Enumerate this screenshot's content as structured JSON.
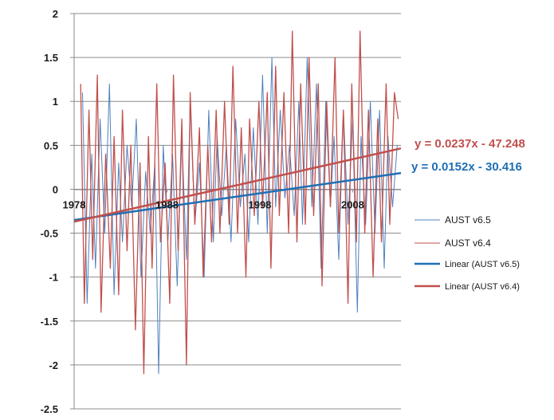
{
  "chart_data": {
    "type": "line",
    "title": "",
    "xlabel": "",
    "ylabel": "",
    "xlim": [
      1978.0,
      2013.2
    ],
    "ylim": [
      -2.5,
      2
    ],
    "y_ticks": [
      "2",
      "1.5",
      "1",
      "0.5",
      "0",
      "-0.5",
      "-1",
      "-1.5",
      "-2",
      "-2.5"
    ],
    "x_ticks": [
      "1978",
      "1988",
      "1998",
      "2008"
    ],
    "grid": true,
    "legend_position": "right",
    "series": [
      {
        "name": "AUST v6.5",
        "color": "#4f81bd",
        "x": [
          1978.9,
          1979.4,
          1979.9,
          1980.3,
          1980.8,
          1981.3,
          1981.8,
          1982.3,
          1982.8,
          1983.2,
          1983.7,
          1984.2,
          1984.7,
          1985.2,
          1985.7,
          1986.2,
          1986.7,
          1987.1,
          1987.6,
          1988.1,
          1988.6,
          1989.1,
          1989.6,
          1990.1,
          1990.5,
          1991.0,
          1991.5,
          1992.0,
          1992.5,
          1993.0,
          1993.4,
          1993.9,
          1994.4,
          1994.9,
          1995.4,
          1995.9,
          1996.4,
          1996.8,
          1997.3,
          1997.8,
          1998.3,
          1998.8,
          1999.3,
          1999.7,
          2000.2,
          2000.7,
          2001.2,
          2001.7,
          2002.2,
          2002.6,
          2003.1,
          2003.6,
          2004.1,
          2004.6,
          2005.1,
          2005.6,
          2006.0,
          2006.5,
          2007.0,
          2007.5,
          2008.0,
          2008.5,
          2008.9,
          2009.4,
          2009.9,
          2010.4,
          2010.9,
          2011.4,
          2011.8,
          2012.3,
          2012.8
        ],
        "y": [
          1.1,
          -1.3,
          0.4,
          -0.9,
          0.8,
          -0.5,
          1.2,
          -1.2,
          0.3,
          -0.6,
          0.5,
          -0.2,
          0.8,
          -1.0,
          0.2,
          -0.5,
          0.3,
          -2.1,
          0.5,
          -0.6,
          0.4,
          -1.1,
          0.6,
          -0.8,
          1.0,
          -0.4,
          0.3,
          -1.0,
          0.9,
          -0.6,
          0.6,
          -0.3,
          0.5,
          -0.6,
          0.8,
          -0.2,
          0.4,
          -0.6,
          0.7,
          -0.4,
          1.3,
          -0.5,
          1.5,
          -0.2,
          0.9,
          -0.1,
          0.5,
          -0.3,
          1.0,
          -0.4,
          1.5,
          -0.2,
          1.2,
          -0.9,
          1.0,
          -0.2,
          0.6,
          -0.8,
          0.9,
          -0.4,
          0.8,
          -1.4,
          0.6,
          -0.4,
          1.0,
          -0.5,
          0.9,
          -0.9,
          0.6,
          -0.2,
          0.5
        ]
      },
      {
        "name": "AUST v6.4",
        "color": "#c0504d",
        "x": [
          1978.7,
          1979.1,
          1979.6,
          1980.0,
          1980.5,
          1980.9,
          1981.4,
          1981.9,
          1982.3,
          1982.8,
          1983.2,
          1983.7,
          1984.1,
          1984.6,
          1985.1,
          1985.5,
          1986.0,
          1986.4,
          1986.9,
          1987.3,
          1987.8,
          1988.3,
          1988.7,
          1989.2,
          1989.6,
          1990.1,
          1990.5,
          1991.0,
          1991.5,
          1991.9,
          1992.4,
          1992.8,
          1993.3,
          1993.7,
          1994.2,
          1994.7,
          1995.1,
          1995.6,
          1996.0,
          1996.5,
          1996.9,
          1997.4,
          1997.9,
          1998.3,
          1998.8,
          1999.2,
          1999.7,
          2000.1,
          2000.6,
          2001.1,
          2001.5,
          2002.0,
          2002.4,
          2002.9,
          2003.3,
          2003.8,
          2004.3,
          2004.7,
          2005.2,
          2005.6,
          2006.1,
          2006.5,
          2007.0,
          2007.5,
          2007.9,
          2008.4,
          2008.8,
          2009.3,
          2009.7,
          2010.2,
          2010.7,
          2011.1,
          2011.6,
          2012.0,
          2012.5,
          2012.9
        ],
        "y": [
          1.2,
          -1.3,
          0.9,
          -0.8,
          1.3,
          -1.4,
          0.4,
          -0.9,
          0.6,
          -1.2,
          0.9,
          -0.7,
          0.5,
          -1.6,
          0.3,
          -2.1,
          0.6,
          -0.9,
          1.2,
          -0.6,
          0.3,
          -1.3,
          1.3,
          -0.7,
          0.8,
          -2.0,
          1.1,
          -0.4,
          0.7,
          -1.0,
          0.5,
          -0.6,
          0.9,
          -0.5,
          1.0,
          -0.4,
          1.4,
          -0.5,
          0.7,
          -1.0,
          0.8,
          -0.3,
          1.0,
          -0.2,
          1.1,
          -0.9,
          1.4,
          -0.3,
          1.1,
          -0.5,
          1.8,
          -0.6,
          1.2,
          -0.4,
          1.5,
          -0.3,
          1.2,
          -1.1,
          1.0,
          -0.2,
          1.5,
          -0.5,
          0.9,
          -1.3,
          1.2,
          -0.6,
          1.8,
          -0.5,
          0.9,
          -1.0,
          0.8,
          -0.6,
          1.2,
          -0.4,
          1.1,
          0.8
        ]
      }
    ],
    "trendlines": [
      {
        "name": "Linear (AUST v6.5)",
        "color": "#1f6fb4",
        "slope": 0.0152,
        "intercept": -30.416,
        "label": "y = 0.0152x - 30.416"
      },
      {
        "name": "Linear (AUST v6.4)",
        "color": "#c0504d",
        "slope": 0.0237,
        "intercept": -47.248,
        "label": "y = 0.0237x - 47.248"
      }
    ]
  }
}
